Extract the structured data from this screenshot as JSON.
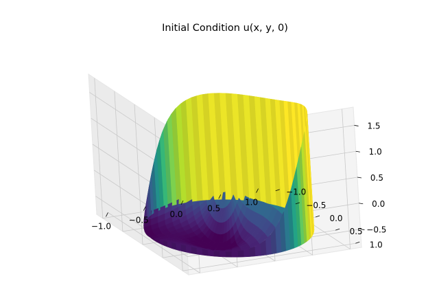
{
  "chart_data": {
    "type": "surface3d",
    "title": "Initial Condition u(x, y, 0)",
    "xlabel": "",
    "ylabel": "",
    "zlabel": "",
    "xlim": [
      -1.15,
      1.15
    ],
    "ylim": [
      -1.15,
      1.15
    ],
    "zlim": [
      -0.85,
      1.85
    ],
    "x_ticks": [
      -1.0,
      -0.5,
      0.0,
      0.5,
      1.0
    ],
    "x_tick_labels": [
      "−1.0",
      "−0.5",
      "0.0",
      "0.5",
      "1.0"
    ],
    "y_ticks": [
      -1.0,
      -0.5,
      0.0,
      0.5,
      1.0
    ],
    "y_tick_labels": [
      "−1.0",
      "−0.5",
      "0.0",
      "0.5",
      "1.0"
    ],
    "z_ticks": [
      -0.5,
      0.0,
      0.5,
      1.0,
      1.5
    ],
    "z_tick_labels": [
      "−0.5",
      "0.0",
      "0.5",
      "1.0",
      "1.5"
    ],
    "domain": "unit disk, radius 1",
    "colormap": "viridis",
    "z_range": [
      -0.8,
      1.3
    ],
    "grid": true
  }
}
